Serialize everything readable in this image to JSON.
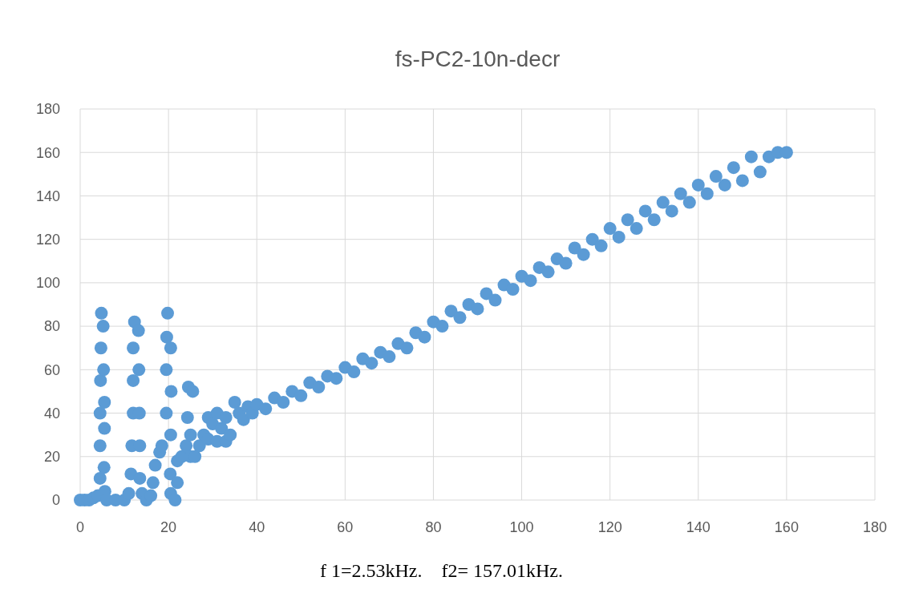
{
  "chart_data": {
    "type": "scatter",
    "title": "fs-PC2-10n-decr",
    "xlim": [
      0,
      180
    ],
    "xticks": [
      0,
      20,
      40,
      60,
      80,
      100,
      120,
      140,
      160,
      180
    ],
    "ylim": [
      0,
      180
    ],
    "yticks": [
      0,
      20,
      40,
      60,
      80,
      100,
      120,
      140,
      160,
      180
    ],
    "grid": true,
    "marker": "circle",
    "annotations": [
      "f 1=2.53kHz.    f2= 157.01kHz."
    ],
    "series": [
      {
        "color": "#5b9bd5",
        "x": [
          0,
          1,
          2,
          3,
          4,
          4.5,
          4.5,
          4.5,
          4.6,
          4.7,
          4.8,
          5.2,
          5.3,
          5.5,
          5.5,
          5.4,
          5.6,
          6,
          8,
          10,
          11,
          11.5,
          11.7,
          12,
          12,
          12,
          12.3,
          13.2,
          13.3,
          13.4,
          13.5,
          13.5,
          14,
          15,
          16,
          16.5,
          17,
          18,
          18.5,
          19.5,
          19.5,
          19.6,
          19.8,
          20.5,
          20.6,
          20.5,
          20.4,
          20.5,
          21.5,
          22,
          22,
          23,
          24,
          24.3,
          24.5,
          25.5,
          25,
          25,
          26,
          27,
          28,
          29,
          29,
          30,
          31,
          31,
          32,
          33,
          33,
          34,
          35,
          36,
          37,
          38,
          39,
          40,
          42,
          44,
          46,
          48,
          50,
          52,
          54,
          56,
          58,
          60,
          62,
          64,
          66,
          68,
          70,
          72,
          74,
          76,
          78,
          80,
          82,
          84,
          86,
          88,
          90,
          92,
          94,
          96,
          98,
          100,
          102,
          104,
          106,
          108,
          110,
          112,
          114,
          116,
          118,
          120,
          122,
          124,
          126,
          128,
          130,
          132,
          134,
          136,
          138,
          140,
          142,
          144,
          146,
          148,
          150,
          152,
          154,
          156,
          158,
          160
        ],
        "values": [
          0,
          0,
          0,
          1,
          2,
          10,
          25,
          40,
          55,
          70,
          86,
          80,
          60,
          45,
          33,
          15,
          4,
          0,
          0,
          0,
          3,
          12,
          25,
          40,
          55,
          70,
          82,
          78,
          60,
          40,
          25,
          10,
          3,
          0,
          2,
          8,
          16,
          22,
          25,
          40,
          60,
          75,
          86,
          70,
          50,
          30,
          12,
          3,
          0,
          8,
          18,
          20,
          25,
          38,
          52,
          50,
          30,
          20,
          20,
          25,
          30,
          38,
          28,
          35,
          27,
          40,
          33,
          38,
          27,
          30,
          45,
          40,
          37,
          43,
          40,
          44,
          42,
          47,
          45,
          50,
          48,
          54,
          52,
          57,
          56,
          61,
          59,
          65,
          63,
          68,
          66,
          72,
          70,
          77,
          75,
          82,
          80,
          87,
          84,
          90,
          88,
          95,
          92,
          99,
          97,
          103,
          101,
          107,
          105,
          111,
          109,
          116,
          113,
          120,
          117,
          125,
          121,
          129,
          125,
          133,
          129,
          137,
          133,
          141,
          137,
          145,
          141,
          149,
          145,
          153,
          147,
          158,
          151,
          158,
          160,
          160
        ]
      }
    ]
  }
}
